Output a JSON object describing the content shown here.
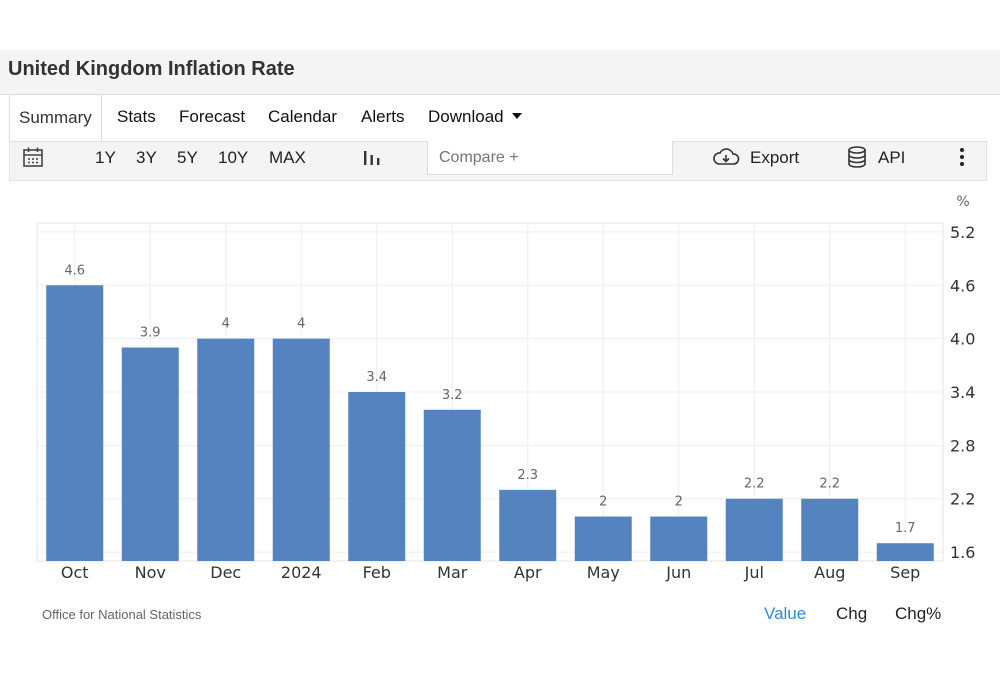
{
  "page": {
    "title": "United Kingdom Inflation Rate"
  },
  "tabs": [
    {
      "label": "Summary"
    },
    {
      "label": "Stats"
    },
    {
      "label": "Forecast"
    },
    {
      "label": "Calendar"
    },
    {
      "label": "Alerts"
    },
    {
      "label": "Download"
    }
  ],
  "toolbar": {
    "ranges": [
      "1Y",
      "3Y",
      "5Y",
      "10Y",
      "MAX"
    ],
    "compare_placeholder": "Compare +",
    "export_label": "Export",
    "api_label": "API"
  },
  "chart_data": {
    "type": "bar",
    "title": "",
    "xlabel": "",
    "ylabel": "%",
    "categories": [
      "Oct",
      "Nov",
      "Dec",
      "2024",
      "Feb",
      "Mar",
      "Apr",
      "May",
      "Jun",
      "Jul",
      "Aug",
      "Sep"
    ],
    "values": [
      4.6,
      3.9,
      4,
      4,
      3.4,
      3.2,
      2.3,
      2,
      2,
      2.2,
      2.2,
      1.7
    ],
    "value_labels": [
      "4.6",
      "3.9",
      "4",
      "4",
      "3.4",
      "3.2",
      "2.3",
      "2",
      "2",
      "2.2",
      "2.2",
      "1.7"
    ],
    "ylim": [
      1.5,
      5.3
    ],
    "yticks": [
      "5.2",
      "4.6",
      "4.0",
      "3.4",
      "2.8",
      "2.2",
      "1.6"
    ],
    "y_axis_position": "right",
    "grid": true,
    "bar_color": "#5583bf"
  },
  "footer": {
    "source": "Office for National Statistics",
    "modes": [
      "Value",
      "Chg",
      "Chg%"
    ]
  }
}
